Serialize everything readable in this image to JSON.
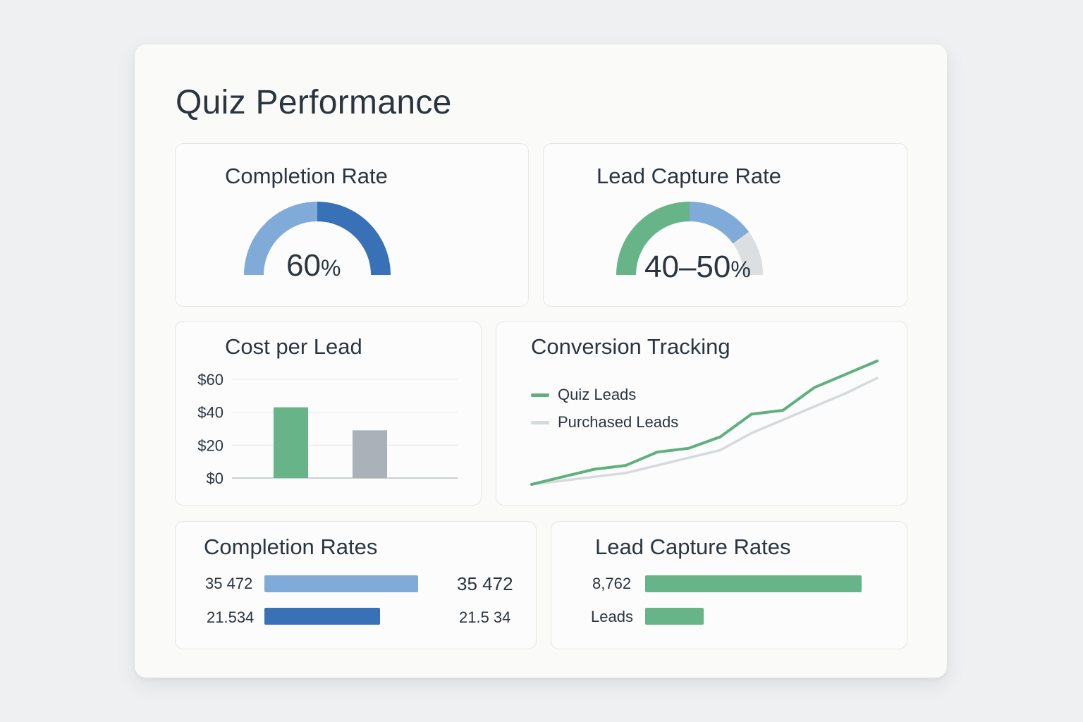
{
  "page": {
    "title": "Quiz Performance"
  },
  "completion_rate": {
    "title": "Completion Rate",
    "value": "60",
    "unit": "%",
    "fraction": 0.6,
    "colors": {
      "light": "#80aad8",
      "dark": "#3871b5"
    }
  },
  "lead_capture_rate": {
    "title": "Lead Capture Rate",
    "value": "40–50",
    "unit": "%",
    "fractions": [
      0.5,
      0.3,
      0.2
    ],
    "colors": [
      "#66b487",
      "#80aad8",
      "#dcdfe1"
    ]
  },
  "cost_per_lead": {
    "title": "Cost per Lead",
    "chart_data": {
      "type": "bar",
      "categories": [
        "",
        ""
      ],
      "values": [
        43,
        29
      ],
      "colors": [
        "#66b487",
        "#aab1b8"
      ],
      "yticks": [
        "$60",
        "$40",
        "$20",
        "$0"
      ],
      "ylim": [
        0,
        60
      ],
      "grid": true
    }
  },
  "conversion_tracking": {
    "title": "Conversion Tracking",
    "chart_data": {
      "type": "line",
      "legend_position": "top-left",
      "series": [
        {
          "name": "Quiz Leads",
          "color": "#5fb07f",
          "values": [
            0,
            4,
            8,
            10,
            17,
            19,
            25,
            37,
            39,
            51,
            58,
            65
          ]
        },
        {
          "name": "Purchased Leads",
          "color": "#d5dadd",
          "values": [
            0,
            2,
            4,
            6,
            10,
            14,
            18,
            27,
            34,
            41,
            48,
            56
          ]
        }
      ]
    }
  },
  "completion_rates": {
    "title": "Completion Rates",
    "rows": [
      {
        "label": "35 472",
        "value_text": "35 472",
        "fraction": 1.0,
        "color": "#80aad8"
      },
      {
        "label": "21.534",
        "value_text": "21.5 34",
        "fraction": 0.75,
        "color": "#3871b5"
      }
    ]
  },
  "lead_capture_rates": {
    "title": "Lead Capture Rates",
    "rows": [
      {
        "label": "8,762",
        "fraction": 1.0,
        "color": "#66b487"
      },
      {
        "label": "Leads",
        "fraction": 0.27,
        "color": "#66b487"
      }
    ]
  }
}
